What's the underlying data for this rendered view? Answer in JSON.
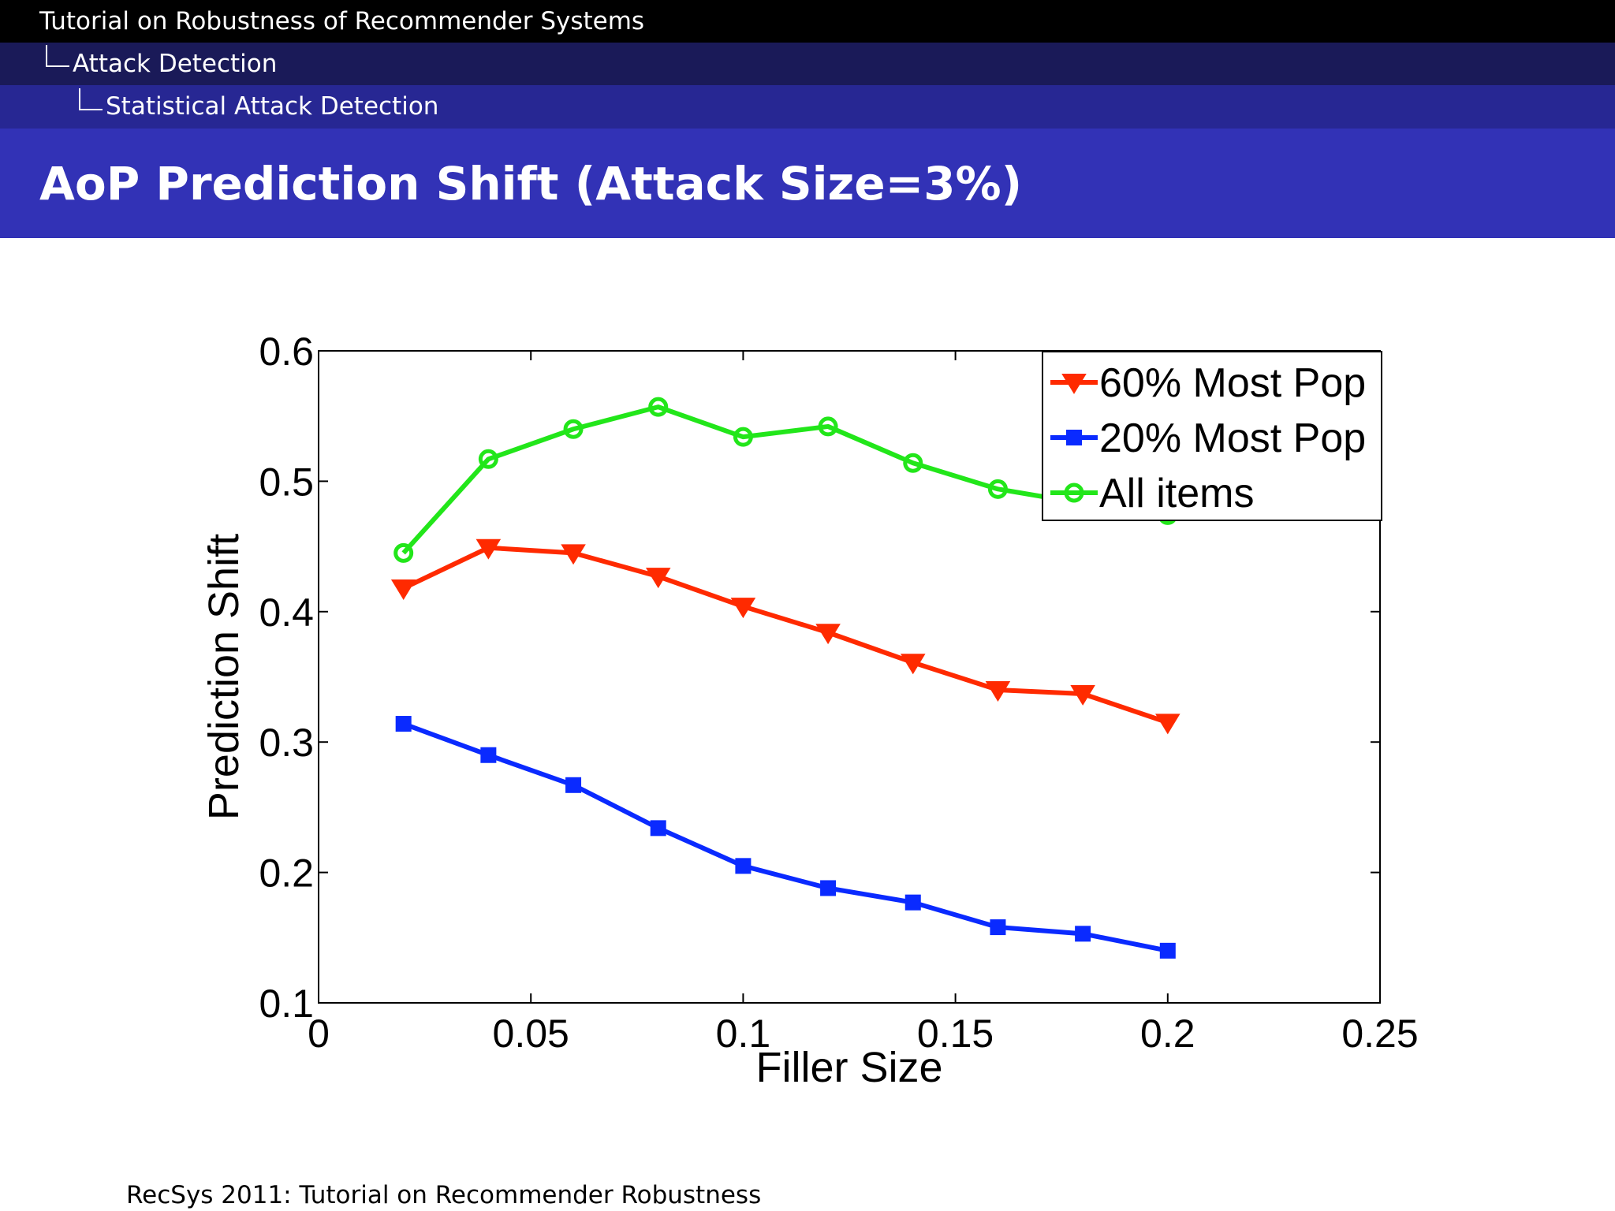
{
  "header": {
    "breadcrumb_root": "Tutorial on Robustness of Recommender Systems",
    "breadcrumb_section": "Attack Detection",
    "breadcrumb_subsection": "Statistical Attack Detection",
    "slide_title": "AoP Prediction Shift (Attack Size=3%)"
  },
  "footer": {
    "text": "RecSys 2011: Tutorial on Recommender Robustness"
  },
  "chart_data": {
    "type": "line",
    "title": "",
    "xlabel": "Filler Size",
    "ylabel": "Prediction Shift",
    "xlim": [
      0,
      0.25
    ],
    "ylim": [
      0.1,
      0.6
    ],
    "xticks": [
      0,
      0.05,
      0.1,
      0.15,
      0.2,
      0.25
    ],
    "xtick_labels": [
      "0",
      "0.05",
      "0.1",
      "0.15",
      "0.2",
      "0.25"
    ],
    "yticks": [
      0.1,
      0.2,
      0.3,
      0.4,
      0.5,
      0.6
    ],
    "ytick_labels": [
      "0.1",
      "0.2",
      "0.3",
      "0.4",
      "0.5",
      "0.6"
    ],
    "grid": false,
    "legend_position": "top-right",
    "x": [
      0.02,
      0.04,
      0.06,
      0.08,
      0.1,
      0.12,
      0.14,
      0.16,
      0.18,
      0.2
    ],
    "series": [
      {
        "name": "60% Most Pop",
        "color": "#ff2a00",
        "marker": "triangle-down",
        "values": [
          0.418,
          0.449,
          0.445,
          0.427,
          0.404,
          0.384,
          0.361,
          0.34,
          0.337,
          0.315
        ]
      },
      {
        "name": "20% Most Pop",
        "color": "#0a2aff",
        "marker": "square",
        "values": [
          0.314,
          0.29,
          0.267,
          0.234,
          0.205,
          0.188,
          0.177,
          0.158,
          0.153,
          0.14
        ]
      },
      {
        "name": "All items",
        "color": "#22e61a",
        "marker": "circle",
        "values": [
          0.445,
          0.517,
          0.54,
          0.557,
          0.534,
          0.542,
          0.514,
          0.494,
          0.483,
          0.474
        ]
      }
    ]
  }
}
